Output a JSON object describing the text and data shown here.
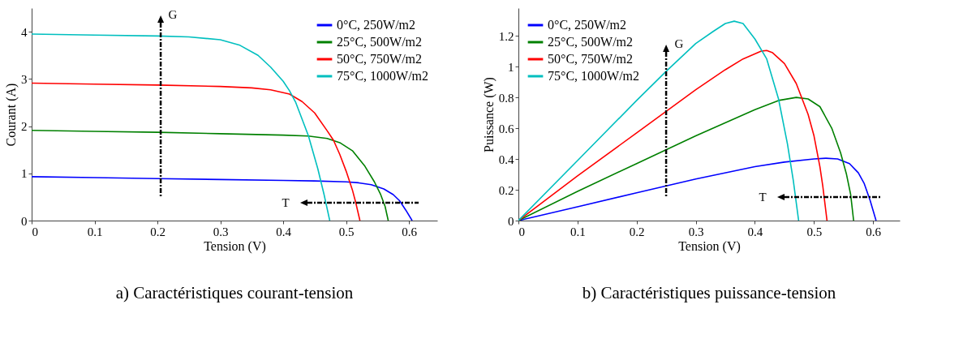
{
  "chart_data": [
    {
      "type": "line",
      "title": "a) Caractéristiques courant-tension",
      "xlabel": "Tension (V)",
      "ylabel": "Courant (A)",
      "xlim": [
        0,
        0.645
      ],
      "ylim": [
        0,
        4.5
      ],
      "xticks": [
        0,
        0.1,
        0.2,
        0.3,
        0.4,
        0.5,
        0.6
      ],
      "yticks": [
        0,
        1,
        2,
        3,
        4
      ],
      "grid": false,
      "legend": "top right",
      "annotations": [
        "G",
        "T"
      ],
      "series": [
        {
          "name": "0°C, 250W/m2",
          "color": "#0000ff",
          "x": [
            0,
            0.1,
            0.2,
            0.3,
            0.4,
            0.45,
            0.5,
            0.52,
            0.54,
            0.56,
            0.575,
            0.585,
            0.595,
            0.605
          ],
          "values": [
            0.93,
            0.91,
            0.89,
            0.87,
            0.85,
            0.84,
            0.82,
            0.8,
            0.76,
            0.67,
            0.55,
            0.42,
            0.22,
            0
          ]
        },
        {
          "name": "25°C, 500W/m2",
          "color": "#008000",
          "x": [
            0,
            0.1,
            0.2,
            0.3,
            0.4,
            0.44,
            0.47,
            0.49,
            0.51,
            0.53,
            0.545,
            0.555,
            0.562,
            0.567
          ],
          "values": [
            1.91,
            1.89,
            1.87,
            1.84,
            1.81,
            1.79,
            1.74,
            1.65,
            1.48,
            1.15,
            0.82,
            0.55,
            0.3,
            0
          ]
        },
        {
          "name": "50°C, 750W/m2",
          "color": "#ff0000",
          "x": [
            0,
            0.1,
            0.2,
            0.3,
            0.35,
            0.38,
            0.41,
            0.43,
            0.45,
            0.47,
            0.48,
            0.49,
            0.5,
            0.51,
            0.515,
            0.522
          ],
          "values": [
            2.91,
            2.89,
            2.87,
            2.84,
            2.81,
            2.77,
            2.68,
            2.52,
            2.28,
            1.9,
            1.7,
            1.4,
            1.05,
            0.65,
            0.4,
            0
          ]
        },
        {
          "name": "75°C, 1000W/m2",
          "color": "#00bfbf",
          "x": [
            0,
            0.1,
            0.2,
            0.25,
            0.3,
            0.33,
            0.36,
            0.38,
            0.4,
            0.41,
            0.42,
            0.44,
            0.455,
            0.465,
            0.474
          ],
          "values": [
            3.95,
            3.93,
            3.91,
            3.89,
            3.83,
            3.72,
            3.5,
            3.25,
            2.95,
            2.75,
            2.5,
            1.8,
            1.1,
            0.55,
            0
          ]
        }
      ]
    },
    {
      "type": "line",
      "title": "b) Caractéristiques puissance-tension",
      "xlabel": "Tension (V)",
      "ylabel": "Puissance (W)",
      "xlim": [
        0,
        0.645
      ],
      "ylim": [
        0,
        1.38
      ],
      "xticks": [
        0,
        0.1,
        0.2,
        0.3,
        0.4,
        0.5,
        0.6
      ],
      "yticks": [
        0,
        0.2,
        0.4,
        0.6,
        0.8,
        1,
        1.2
      ],
      "grid": false,
      "legend": "top left",
      "annotations": [
        "G",
        "T"
      ],
      "series": [
        {
          "name": "0°C, 250W/m2",
          "color": "#0000ff",
          "x": [
            0,
            0.1,
            0.2,
            0.3,
            0.4,
            0.45,
            0.5,
            0.52,
            0.54,
            0.56,
            0.575,
            0.585,
            0.595,
            0.605
          ],
          "values": [
            0,
            0.09,
            0.18,
            0.27,
            0.35,
            0.38,
            0.4,
            0.405,
            0.4,
            0.37,
            0.31,
            0.24,
            0.13,
            0
          ]
        },
        {
          "name": "25°C, 500W/m2",
          "color": "#008000",
          "x": [
            0,
            0.1,
            0.2,
            0.3,
            0.4,
            0.44,
            0.47,
            0.49,
            0.51,
            0.53,
            0.545,
            0.555,
            0.562,
            0.567
          ],
          "values": [
            0,
            0.19,
            0.37,
            0.55,
            0.72,
            0.78,
            0.8,
            0.79,
            0.74,
            0.6,
            0.44,
            0.3,
            0.17,
            0
          ]
        },
        {
          "name": "50°C, 750W/m2",
          "color": "#ff0000",
          "x": [
            0,
            0.1,
            0.2,
            0.3,
            0.35,
            0.38,
            0.41,
            0.42,
            0.43,
            0.45,
            0.47,
            0.49,
            0.5,
            0.51,
            0.515,
            0.522
          ],
          "values": [
            0,
            0.29,
            0.57,
            0.85,
            0.98,
            1.05,
            1.1,
            1.105,
            1.09,
            1.02,
            0.89,
            0.69,
            0.55,
            0.35,
            0.22,
            0
          ]
        },
        {
          "name": "75°C, 1000W/m2",
          "color": "#00bfbf",
          "x": [
            0,
            0.1,
            0.2,
            0.25,
            0.3,
            0.33,
            0.35,
            0.365,
            0.38,
            0.4,
            0.42,
            0.44,
            0.455,
            0.465,
            0.474
          ],
          "values": [
            0,
            0.39,
            0.78,
            0.97,
            1.15,
            1.23,
            1.28,
            1.295,
            1.28,
            1.18,
            1.05,
            0.79,
            0.5,
            0.26,
            0
          ]
        }
      ]
    }
  ]
}
